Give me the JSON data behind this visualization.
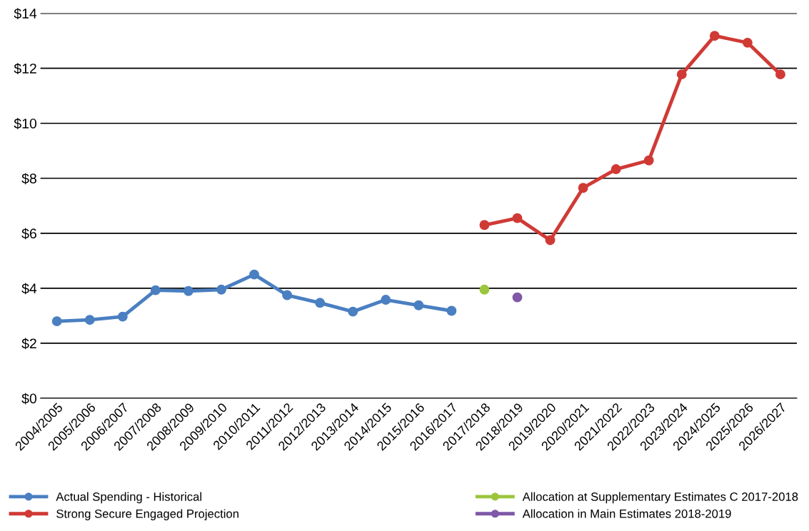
{
  "chart_data": {
    "type": "line",
    "categories": [
      "2004/2005",
      "2005/2006",
      "2006/2007",
      "2007/2008",
      "2008/2009",
      "2009/2010",
      "2010/2011",
      "2011/2012",
      "2012/2013",
      "2013/2014",
      "2014/2015",
      "2015/2016",
      "2016/2017",
      "2017/2018",
      "2018/2019",
      "2019/2020",
      "2020/2021",
      "2021/2022",
      "2022/2023",
      "2023/2024",
      "2024/2025",
      "2025/2026",
      "2026/2027"
    ],
    "series": [
      {
        "name": "Actual Spending - Historical",
        "color": "#4a7fc1",
        "values": [
          2.8,
          2.85,
          2.97,
          3.93,
          3.9,
          3.95,
          4.5,
          3.75,
          3.47,
          3.15,
          3.58,
          3.38,
          3.18,
          null,
          null,
          null,
          null,
          null,
          null,
          null,
          null,
          null,
          null
        ]
      },
      {
        "name": "Strong Secure Engaged Projection",
        "color": "#d03a35",
        "values": [
          null,
          null,
          null,
          null,
          null,
          null,
          null,
          null,
          null,
          null,
          null,
          null,
          null,
          6.3,
          6.55,
          5.75,
          7.65,
          8.33,
          8.65,
          11.78,
          13.18,
          12.93,
          11.78
        ]
      },
      {
        "name": "Allocation at Supplementary Estimates C 2017-2018",
        "color": "#9bc53d",
        "values": [
          null,
          null,
          null,
          null,
          null,
          null,
          null,
          null,
          null,
          null,
          null,
          null,
          null,
          3.95,
          null,
          null,
          null,
          null,
          null,
          null,
          null,
          null,
          null
        ]
      },
      {
        "name": "Allocation in Main Estimates 2018-2019",
        "color": "#8058a8",
        "values": [
          null,
          null,
          null,
          null,
          null,
          null,
          null,
          null,
          null,
          null,
          null,
          null,
          null,
          null,
          3.67,
          null,
          null,
          null,
          null,
          null,
          null,
          null,
          null
        ]
      }
    ],
    "ylim": [
      0,
      14
    ],
    "yticks": [
      {
        "value": 0,
        "label": "$0"
      },
      {
        "value": 2,
        "label": "$2"
      },
      {
        "value": 4,
        "label": "$4"
      },
      {
        "value": 6,
        "label": "$6"
      },
      {
        "value": 8,
        "label": "$8"
      },
      {
        "value": 10,
        "label": "$10"
      },
      {
        "value": 12,
        "label": "$12"
      },
      {
        "value": 14,
        "label": "$14"
      }
    ],
    "grid": "y",
    "legend": "bottom",
    "marker": "circle",
    "line_style": "solid"
  }
}
